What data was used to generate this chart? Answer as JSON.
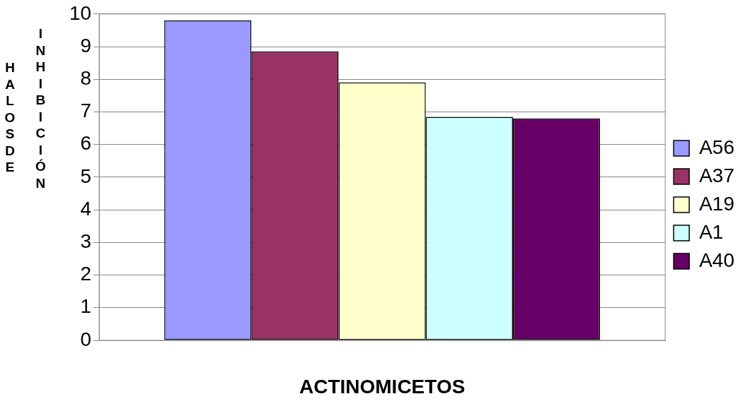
{
  "chart_data": {
    "type": "bar",
    "xlabel": "ACTINOMICETOS",
    "ylabel": "HALOS DE INHIBICIÓN",
    "categories": [
      null
    ],
    "series": [
      {
        "name": "A56",
        "color": "#9999ff",
        "values": [
          9.8
        ]
      },
      {
        "name": "A37",
        "color": "#993366",
        "values": [
          8.85
        ]
      },
      {
        "name": "A19",
        "color": "#ffffcc",
        "values": [
          7.9
        ]
      },
      {
        "name": "A1",
        "color": "#ccffff",
        "values": [
          6.85
        ]
      },
      {
        "name": "A40",
        "color": "#660066",
        "values": [
          6.8
        ]
      }
    ],
    "ylim": [
      0,
      10
    ],
    "yticks": [
      0,
      1,
      2,
      3,
      4,
      5,
      6,
      7,
      8,
      9,
      10
    ],
    "grid": "y",
    "legend": "right"
  }
}
